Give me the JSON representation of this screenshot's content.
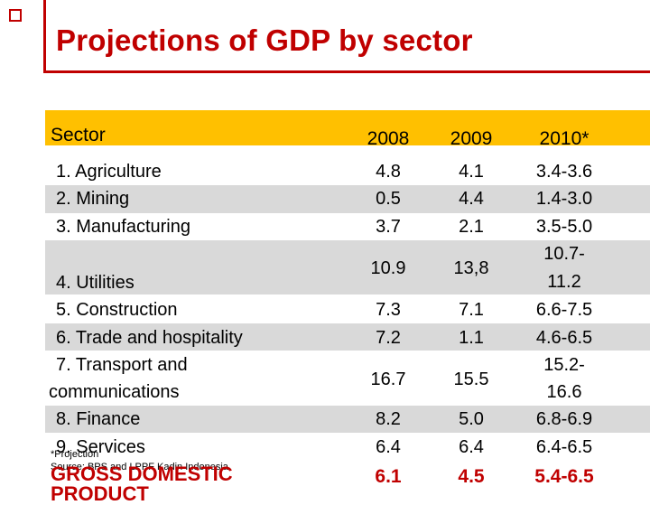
{
  "slide": {
    "title": "Projections of GDP by sector"
  },
  "table": {
    "header": {
      "sector": "Sector",
      "y2008": "2008",
      "y2009": "2009",
      "y2010": "2010*"
    },
    "rows": [
      {
        "label": "1. Agriculture",
        "v2008": "4.8",
        "v2009": "4.1",
        "v2010": "3.4-3.6"
      },
      {
        "label": "2. Mining",
        "v2008": "0.5",
        "v2009": "4.4",
        "v2010": "1.4-3.0"
      },
      {
        "label": "3. Manufacturing",
        "v2008": "3.7",
        "v2009": "2.1",
        "v2010": "3.5-5.0"
      },
      {
        "label": "",
        "v2008": "10.9",
        "v2009": "13,8",
        "v2010_a": "10.7-",
        "v2010_b": "11.2"
      },
      {
        "label": "4. Utilities"
      },
      {
        "label": "5. Construction",
        "v2008": "7.3",
        "v2009": "7.1",
        "v2010": "6.6-7.5"
      },
      {
        "label": "6. Trade and hospitality",
        "v2008": "7.2",
        "v2009": "1.1",
        "v2010": "4.6-6.5"
      },
      {
        "label_a": "7. Transport and",
        "label_b": "communications",
        "v2008": "16.7",
        "v2009": "15.5",
        "v2010_a": "15.2-",
        "v2010_b": "16.6"
      },
      {
        "label": "8. Finance",
        "v2008": "8.2",
        "v2009": "5.0",
        "v2010": "6.8-6.9"
      },
      {
        "label": "9. Services",
        "v2008": "6.4",
        "v2009": "6.4",
        "v2010": "6.4-6.5"
      }
    ],
    "total": {
      "label": "GROSS DOMESTIC PRODUCT",
      "v2008": "6.1",
      "v2009": "4.5",
      "v2010": "5.4-6.5"
    }
  },
  "footnotes": {
    "projection": "*Projection",
    "source": "Source: BPS and LPPF Kadin Indonesia."
  },
  "colors": {
    "accent": "#c00000",
    "header": "#ffc000",
    "band": "#d9d9d9"
  }
}
